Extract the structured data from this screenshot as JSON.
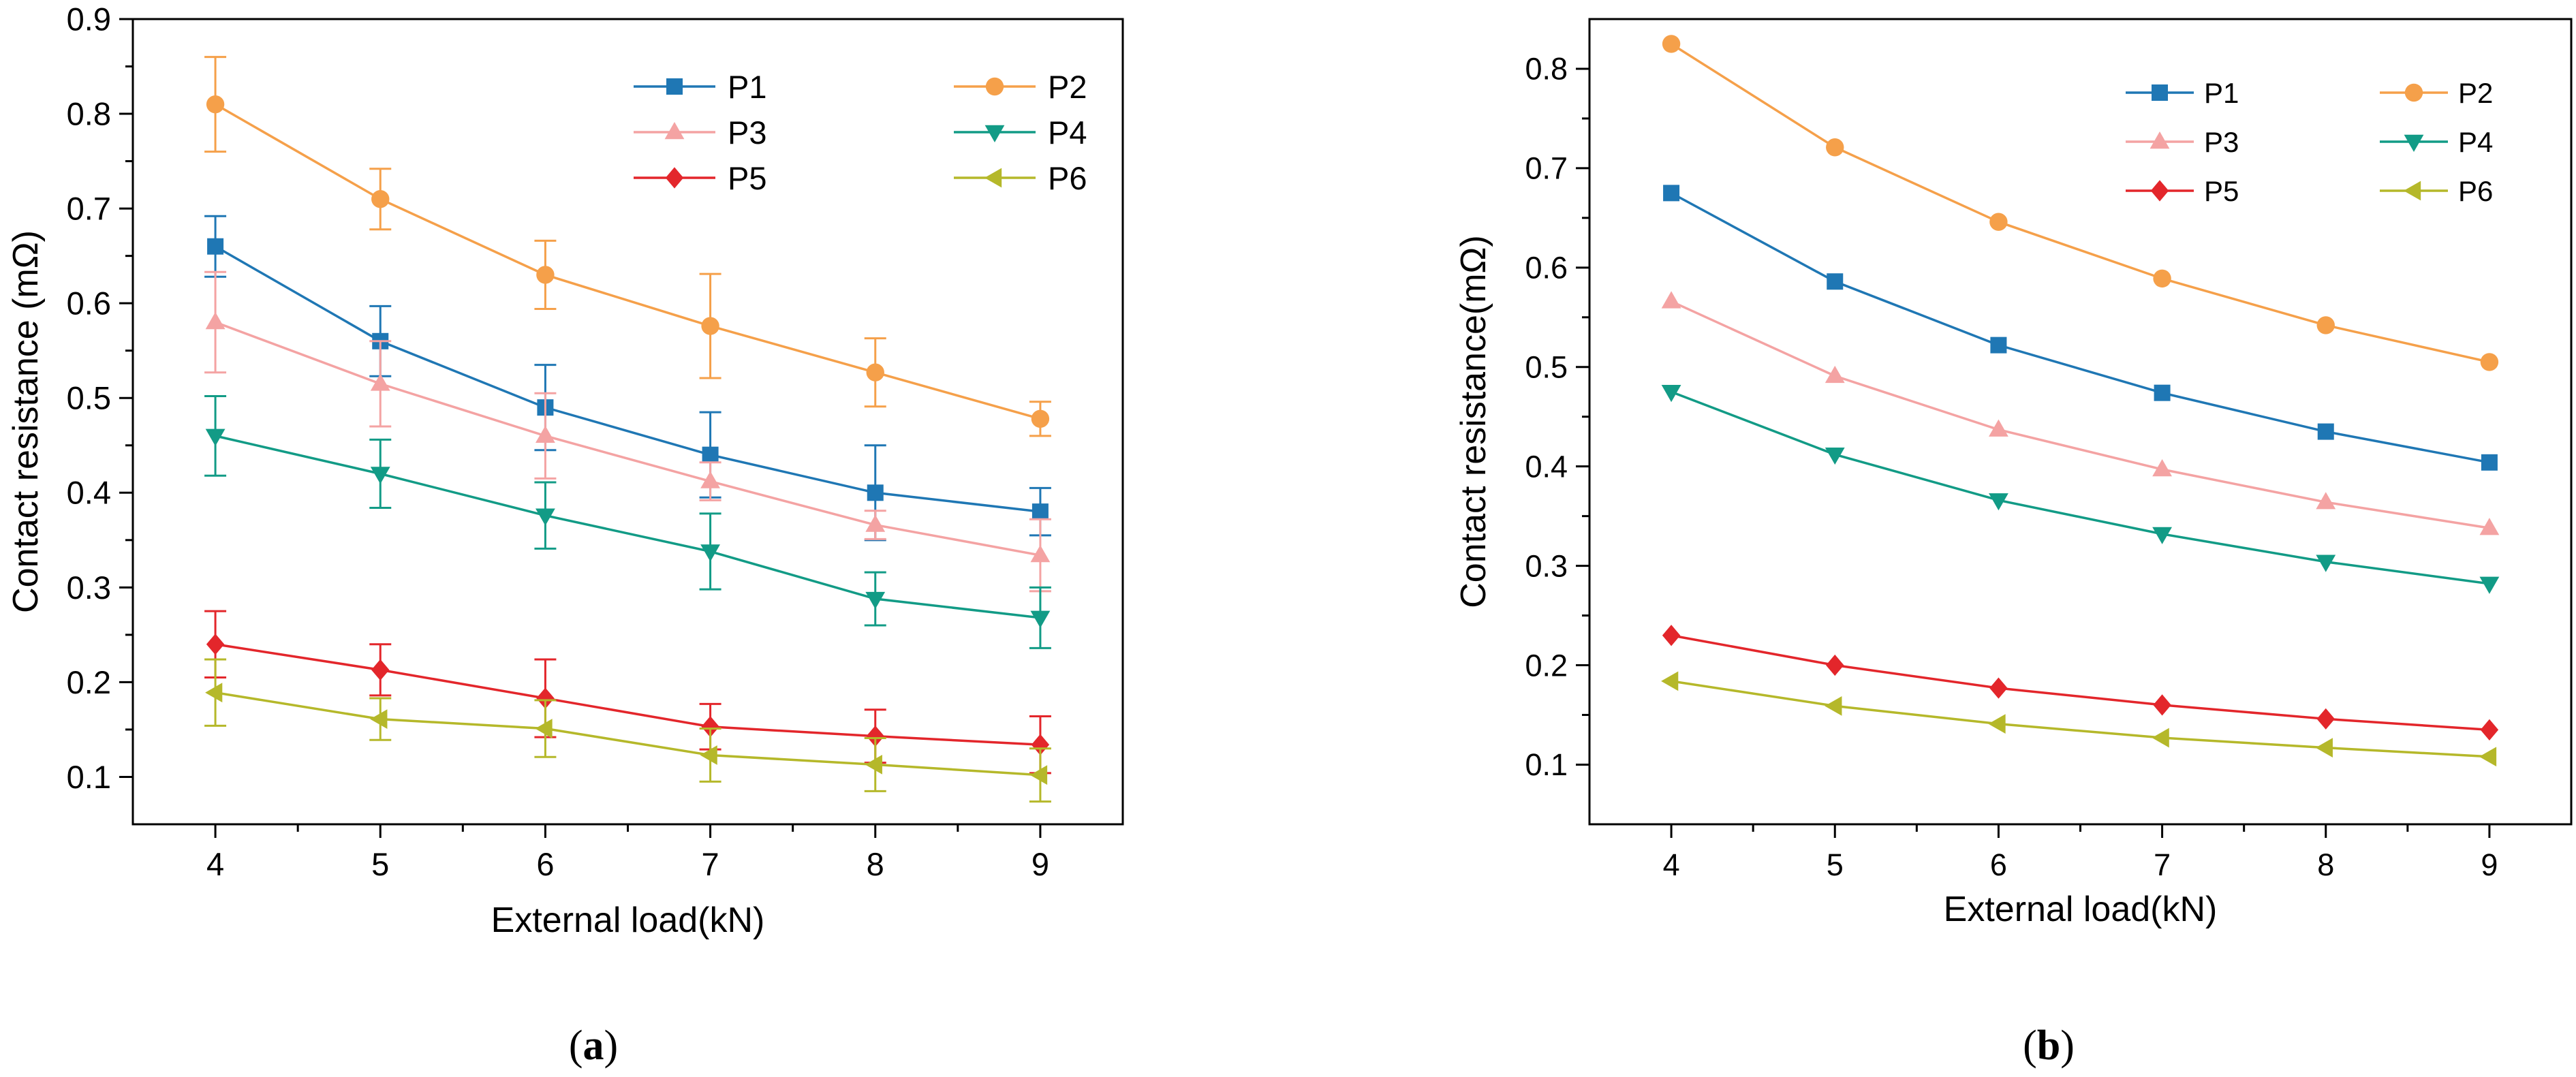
{
  "colors": {
    "P1": "#1f77b4",
    "P2": "#f5a04a",
    "P3": "#f4a3a3",
    "P4": "#129b86",
    "P5": "#e3262b",
    "P6": "#b5b82a"
  },
  "panel_labels": {
    "a": {
      "open": "(",
      "letter": "a",
      "close": ")"
    },
    "b": {
      "open": "(",
      "letter": "b",
      "close": ")"
    }
  },
  "chart_data": [
    {
      "type": "line",
      "panel": "a",
      "xlabel": "External load(kN)",
      "ylabel": "Contact resistance (mΩ)",
      "xlim": [
        3.5,
        9.5
      ],
      "ylim": [
        0.05,
        0.9
      ],
      "xticks": [
        4,
        5,
        6,
        7,
        8,
        9
      ],
      "yticks": [
        0.1,
        0.2,
        0.3,
        0.4,
        0.5,
        0.6,
        0.7,
        0.8,
        0.9
      ],
      "ytick_labels": [
        "0.1",
        "0.2",
        "0.3",
        "0.4",
        "0.5",
        "0.6",
        "0.7",
        "0.8",
        "0.9"
      ],
      "x": [
        4,
        5,
        6,
        7,
        8,
        9
      ],
      "legend_position": "top-right",
      "series": [
        {
          "name": "P1",
          "marker": "square",
          "values": [
            0.66,
            0.56,
            0.49,
            0.44,
            0.4,
            0.38
          ],
          "errors": [
            0.032,
            0.037,
            0.045,
            0.045,
            0.05,
            0.025
          ]
        },
        {
          "name": "P2",
          "marker": "circle",
          "values": [
            0.81,
            0.71,
            0.63,
            0.576,
            0.527,
            0.478
          ],
          "errors": [
            0.05,
            0.032,
            0.036,
            0.055,
            0.036,
            0.018
          ]
        },
        {
          "name": "P3",
          "marker": "triangle-up",
          "values": [
            0.58,
            0.515,
            0.46,
            0.412,
            0.366,
            0.334
          ],
          "errors": [
            0.053,
            0.045,
            0.045,
            0.02,
            0.015,
            0.038
          ]
        },
        {
          "name": "P4",
          "marker": "triangle-down",
          "values": [
            0.46,
            0.42,
            0.376,
            0.338,
            0.288,
            0.268
          ],
          "errors": [
            0.042,
            0.036,
            0.035,
            0.04,
            0.028,
            0.032
          ]
        },
        {
          "name": "P5",
          "marker": "diamond",
          "values": [
            0.24,
            0.213,
            0.183,
            0.153,
            0.143,
            0.134
          ],
          "errors": [
            0.035,
            0.027,
            0.041,
            0.024,
            0.028,
            0.03
          ]
        },
        {
          "name": "P6",
          "marker": "triangle-left",
          "values": [
            0.189,
            0.161,
            0.151,
            0.123,
            0.113,
            0.102
          ],
          "errors": [
            0.035,
            0.022,
            0.03,
            0.028,
            0.028,
            0.028
          ]
        }
      ]
    },
    {
      "type": "line",
      "panel": "b",
      "xlabel": "External load(kN)",
      "ylabel": "Contact resistance(mΩ)",
      "xlim": [
        3.5,
        9.5
      ],
      "ylim": [
        0.04,
        0.85
      ],
      "xticks": [
        4,
        5,
        6,
        7,
        8,
        9
      ],
      "yticks": [
        0.1,
        0.2,
        0.3,
        0.4,
        0.5,
        0.6,
        0.7,
        0.8
      ],
      "ytick_labels": [
        "0.1",
        "0.2",
        "0.3",
        "0.4",
        "0.5",
        "0.6",
        "0.7",
        "0.8"
      ],
      "x": [
        4,
        5,
        6,
        7,
        8,
        9
      ],
      "legend_position": "top-right",
      "series": [
        {
          "name": "P1",
          "marker": "square",
          "values": [
            0.675,
            0.586,
            0.522,
            0.474,
            0.435,
            0.404
          ]
        },
        {
          "name": "P2",
          "marker": "circle",
          "values": [
            0.825,
            0.721,
            0.646,
            0.589,
            0.542,
            0.505
          ]
        },
        {
          "name": "P3",
          "marker": "triangle-up",
          "values": [
            0.566,
            0.491,
            0.437,
            0.397,
            0.364,
            0.338
          ]
        },
        {
          "name": "P4",
          "marker": "triangle-down",
          "values": [
            0.475,
            0.412,
            0.366,
            0.332,
            0.304,
            0.282
          ]
        },
        {
          "name": "P5",
          "marker": "diamond",
          "values": [
            0.23,
            0.2,
            0.177,
            0.16,
            0.146,
            0.135
          ]
        },
        {
          "name": "P6",
          "marker": "triangle-left",
          "values": [
            0.184,
            0.159,
            0.141,
            0.127,
            0.117,
            0.108
          ]
        }
      ]
    }
  ]
}
